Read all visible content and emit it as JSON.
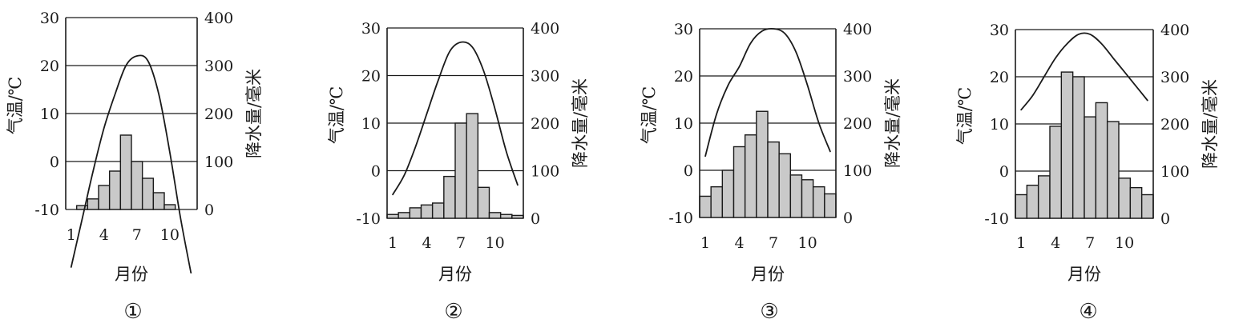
{
  "chart_data": [
    {
      "type": "bar",
      "label": "①",
      "xlabel": "月份",
      "ylabel_left": "气温/℃",
      "ylabel_right": "降水量/毫米",
      "x_ticks": [
        "1",
        "4",
        "7",
        "10"
      ],
      "y_left_ticks": [
        "30",
        "20",
        "10",
        "0",
        "-10"
      ],
      "y_right_ticks": [
        "400",
        "300",
        "200",
        "100",
        "0"
      ],
      "y_left_range": [
        -10,
        30
      ],
      "y_right_range": [
        0,
        400
      ],
      "grid": true,
      "months": [
        1,
        2,
        3,
        4,
        5,
        6,
        7,
        8,
        9,
        10,
        11,
        12
      ],
      "series": [
        {
          "kind": "bar",
          "axis": "right",
          "values": [
            0,
            8,
            22,
            50,
            80,
            155,
            100,
            65,
            35,
            10,
            0,
            0
          ]
        },
        {
          "kind": "line",
          "axis": "left",
          "values": [
            -22,
            -12,
            -2,
            7,
            14,
            20,
            22,
            21,
            14,
            2,
            -12,
            -24
          ]
        }
      ]
    },
    {
      "type": "bar",
      "label": "②",
      "xlabel": "月份",
      "ylabel_left": "气温/℃",
      "ylabel_right": "降水量/毫米",
      "x_ticks": [
        "1",
        "4",
        "7",
        "10"
      ],
      "y_left_ticks": [
        "30",
        "20",
        "10",
        "0",
        "-10"
      ],
      "y_right_ticks": [
        "400",
        "300",
        "200",
        "100",
        "0"
      ],
      "y_left_range": [
        -10,
        30
      ],
      "y_right_range": [
        0,
        400
      ],
      "grid": true,
      "months": [
        1,
        2,
        3,
        4,
        5,
        6,
        7,
        8,
        9,
        10,
        11,
        12
      ],
      "series": [
        {
          "kind": "bar",
          "axis": "right",
          "values": [
            8,
            12,
            22,
            28,
            32,
            88,
            200,
            220,
            65,
            12,
            8,
            6
          ]
        },
        {
          "kind": "line",
          "axis": "left",
          "values": [
            -5,
            -1,
            5,
            12,
            19,
            25,
            27,
            26,
            21,
            13,
            4,
            -3
          ]
        }
      ]
    },
    {
      "type": "bar",
      "label": "③",
      "xlabel": "月份",
      "ylabel_left": "气温/℃",
      "ylabel_right": "降水量/毫米",
      "x_ticks": [
        "1",
        "4",
        "7",
        "10"
      ],
      "y_left_ticks": [
        "30",
        "20",
        "10",
        "0",
        "-10"
      ],
      "y_right_ticks": [
        "400",
        "300",
        "200",
        "100",
        "0"
      ],
      "y_left_range": [
        -10,
        30
      ],
      "y_right_range": [
        0,
        400
      ],
      "grid": true,
      "months": [
        1,
        2,
        3,
        4,
        5,
        6,
        7,
        8,
        9,
        10,
        11,
        12
      ],
      "series": [
        {
          "kind": "bar",
          "axis": "right",
          "values": [
            45,
            65,
            100,
            150,
            175,
            225,
            160,
            135,
            90,
            80,
            65,
            50
          ]
        },
        {
          "kind": "line",
          "axis": "left",
          "values": [
            3,
            12,
            18,
            22,
            27,
            29.5,
            30,
            29,
            25,
            18,
            10,
            4
          ]
        }
      ]
    },
    {
      "type": "bar",
      "label": "④",
      "xlabel": "月份",
      "ylabel_left": "气温/℃",
      "ylabel_right": "降水量/毫米",
      "x_ticks": [
        "1",
        "4",
        "7",
        "10"
      ],
      "y_left_ticks": [
        "30",
        "20",
        "10",
        "0",
        "-10"
      ],
      "y_right_ticks": [
        "400",
        "300",
        "200",
        "100",
        "0"
      ],
      "y_left_range": [
        -10,
        30
      ],
      "y_right_range": [
        0,
        400
      ],
      "grid": true,
      "months": [
        1,
        2,
        3,
        4,
        5,
        6,
        7,
        8,
        9,
        10,
        11,
        12
      ],
      "series": [
        {
          "kind": "bar",
          "axis": "right",
          "values": [
            50,
            70,
            90,
            195,
            310,
            300,
            215,
            245,
            205,
            85,
            65,
            50
          ]
        },
        {
          "kind": "line",
          "axis": "left",
          "values": [
            13,
            16,
            20,
            24,
            27,
            29,
            29,
            27,
            24,
            21,
            18,
            15
          ]
        }
      ]
    }
  ]
}
